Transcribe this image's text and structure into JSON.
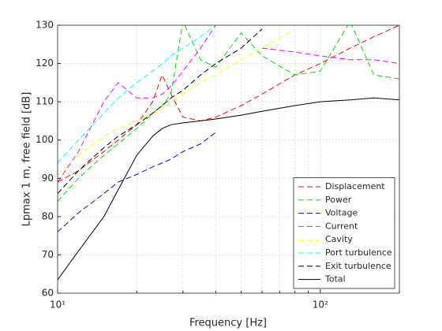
{
  "chart_data": {
    "type": "line",
    "xlabel": "Frequency [Hz]",
    "ylabel": "Lpmax 1 m, free field [dB]",
    "log_x": true,
    "grid": true,
    "legend": "lower right",
    "xlim": [
      10,
      200
    ],
    "ylim": [
      60,
      130
    ],
    "xticks": [
      {
        "value": 10,
        "label": "10¹"
      },
      {
        "value": 100,
        "label": "10²"
      }
    ],
    "xminorticks": [
      20,
      30,
      40,
      50,
      60,
      70,
      80,
      90,
      200
    ],
    "yticks": [
      60,
      70,
      80,
      90,
      100,
      110,
      120,
      130
    ],
    "x": [
      10,
      12,
      15,
      17,
      20,
      23,
      25,
      27,
      30,
      35,
      40,
      50,
      60,
      80,
      100,
      130,
      160,
      200
    ],
    "series": [
      {
        "name": "Displacement",
        "color": "#ff0000",
        "dash": true,
        "values": [
          89,
          92,
          97,
          100,
          104,
          110,
          117,
          112,
          106,
          105,
          106,
          109,
          112,
          117,
          120,
          124,
          127,
          130
        ]
      },
      {
        "name": "Power",
        "color": "#00e000",
        "dash": true,
        "values": [
          84,
          90,
          96,
          99,
          103,
          107,
          109,
          112,
          131,
          121,
          119,
          128,
          122,
          117,
          118,
          131,
          117,
          116
        ]
      },
      {
        "name": "Voltage",
        "color": "#0000ff",
        "dash": true,
        "values": [
          76,
          81,
          86,
          89,
          91,
          93,
          94,
          95,
          97,
          99,
          102,
          null,
          null,
          null,
          null,
          null,
          null,
          null
        ]
      },
      {
        "name": "Current",
        "color": "#ff00ff",
        "dash": true,
        "values": [
          89,
          97,
          110,
          115,
          111,
          111,
          112,
          114,
          118,
          124,
          130,
          null,
          124,
          123,
          122,
          121,
          121,
          120
        ]
      },
      {
        "name": "Cavity",
        "color": "#ffff00",
        "dash": true,
        "values": [
          91,
          96,
          101,
          103,
          105,
          107,
          108,
          110,
          112,
          115,
          117,
          121,
          124,
          129,
          null,
          null,
          null,
          null
        ]
      },
      {
        "name": "Port turbulence",
        "color": "#00ffff",
        "dash": true,
        "values": [
          94,
          100,
          107,
          111,
          115,
          118,
          120,
          122,
          124,
          127,
          130,
          null,
          null,
          null,
          null,
          null,
          null,
          null
        ]
      },
      {
        "name": "Exit turbulence",
        "color": "#000000",
        "dash": true,
        "values": [
          86,
          92,
          98,
          101,
          104,
          107,
          109,
          111,
          113,
          117,
          120,
          124,
          129,
          null,
          null,
          null,
          null,
          null
        ]
      },
      {
        "name": "Total",
        "color": "#000000",
        "dash": false,
        "values": [
          63.5,
          71,
          80,
          87,
          96,
          101,
          103,
          104,
          104.5,
          105,
          105.5,
          106.5,
          107.5,
          109,
          110,
          110.5,
          111,
          110.5
        ]
      }
    ]
  }
}
